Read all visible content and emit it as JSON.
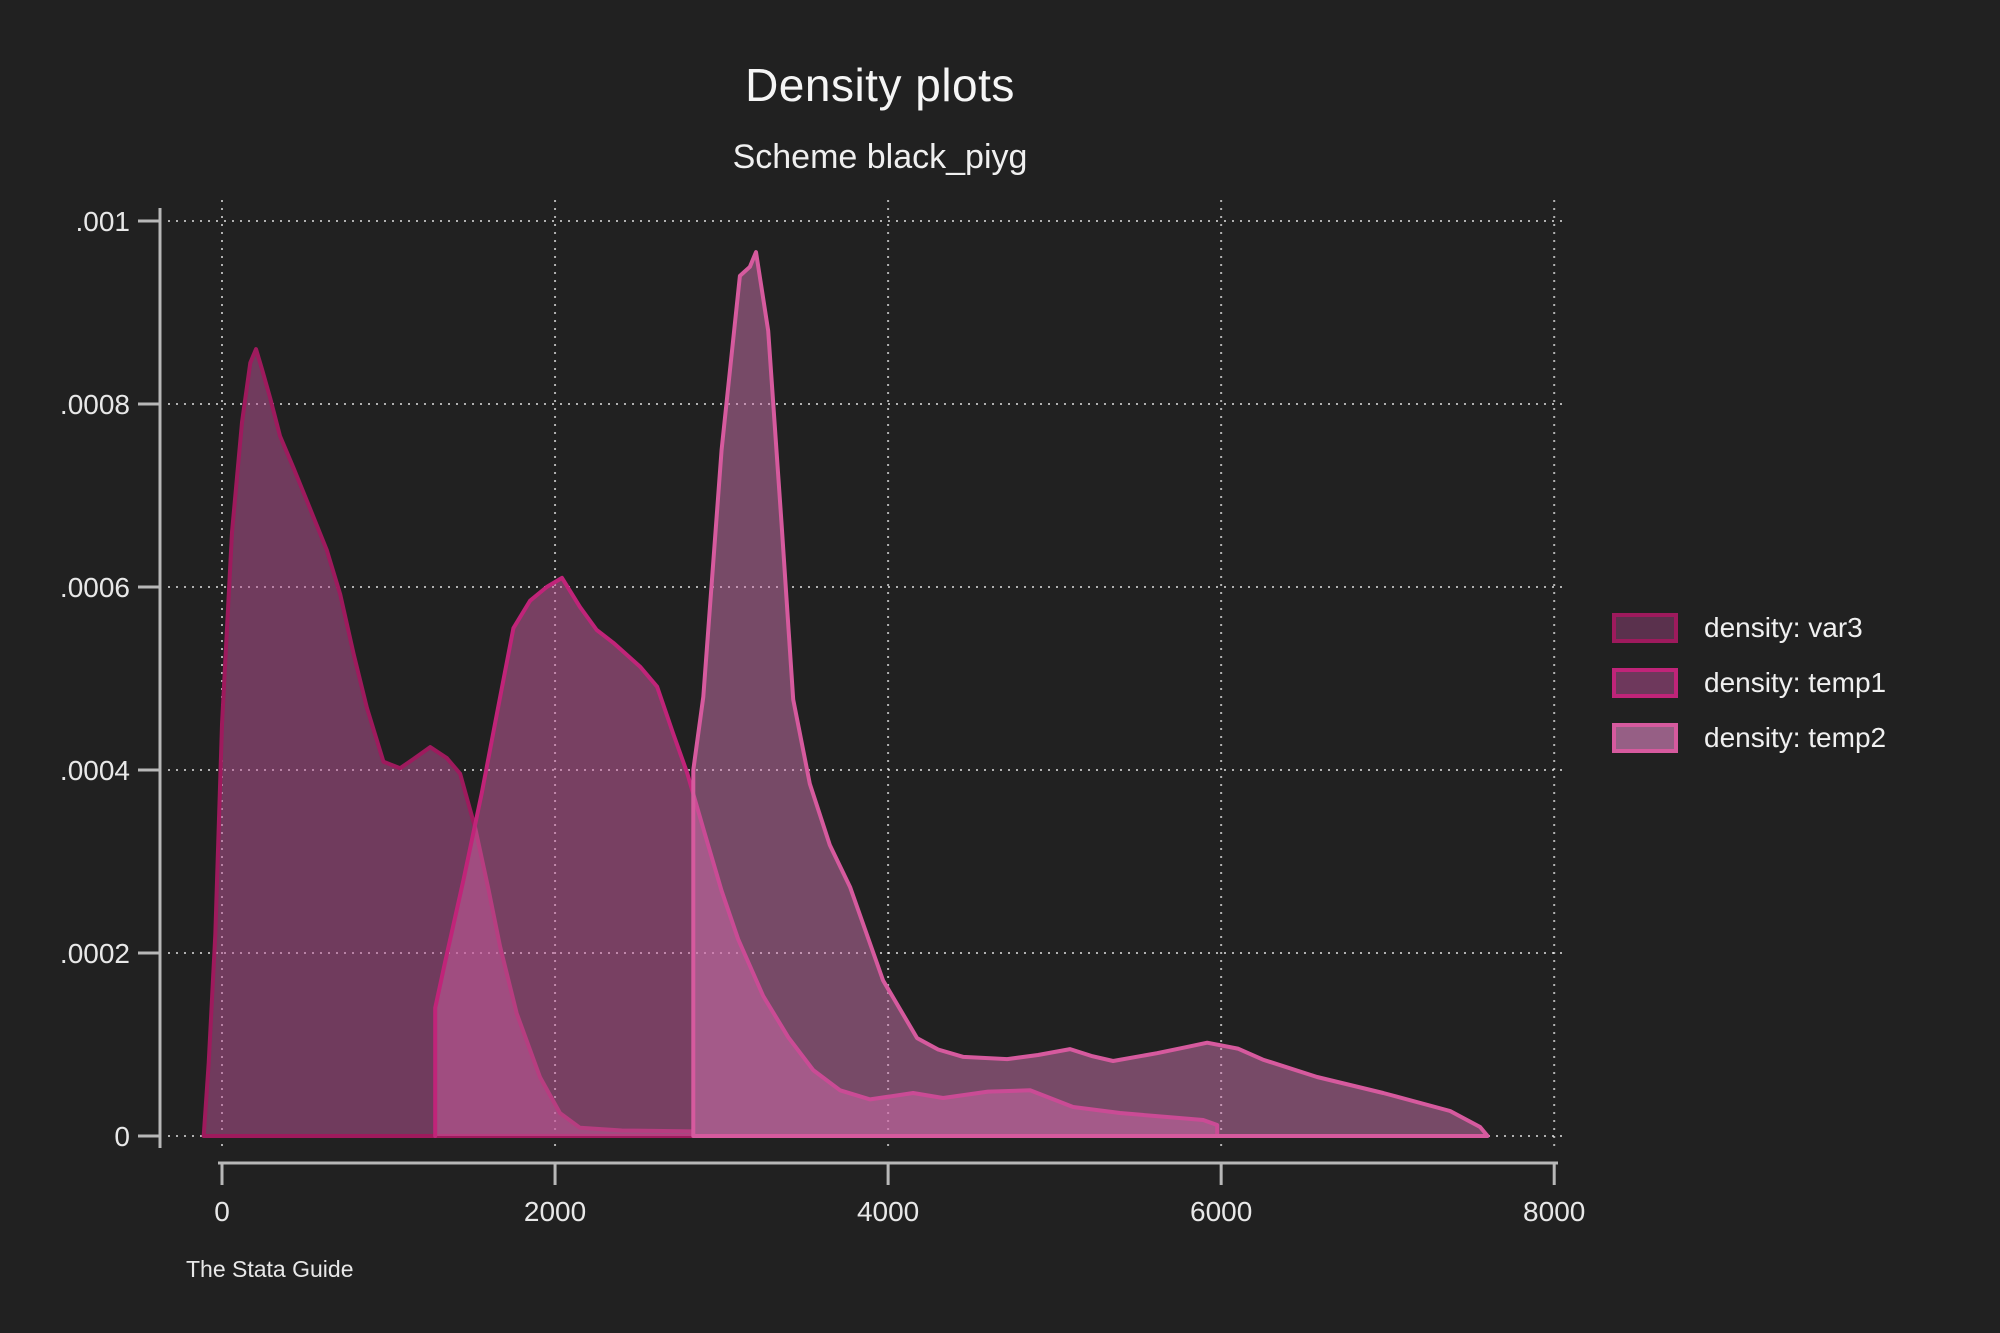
{
  "header": {
    "title": "Density plots",
    "subtitle": "Scheme black_piyg"
  },
  "caption": "The Stata Guide",
  "colors": {
    "background": "#212121",
    "axis_line": "#b8b8b8",
    "tick_text": "#e8e8e8",
    "title_text": "#f5f5f5",
    "gridline": "rgba(255,255,255,0.65)"
  },
  "legend": {
    "position": "right",
    "items": [
      {
        "label": "density: var3",
        "line": "#9e1a5d",
        "fill": "#5a314d"
      },
      {
        "label": "density: temp1",
        "line": "#c02479",
        "fill": "#6e385c"
      },
      {
        "label": "density: temp2",
        "line": "#d65a9e",
        "fill": "#965f85"
      }
    ]
  },
  "chart_data": {
    "type": "area",
    "title": "Density plots",
    "subtitle": "Scheme black_piyg",
    "xlabel": "",
    "ylabel": "",
    "xlim": [
      -370,
      8060
    ],
    "ylim": [
      0,
      0.001
    ],
    "grid": true,
    "legend_position": "right",
    "x_ticks": [
      0,
      2000,
      4000,
      6000,
      8000
    ],
    "x_tick_labels": [
      "0",
      "2000",
      "4000",
      "6000",
      "8000"
    ],
    "y_ticks": [
      0,
      0.0002,
      0.0004,
      0.0006,
      0.0008,
      0.001
    ],
    "y_tick_labels": [
      "0",
      ".0002",
      ".0004",
      ".0006",
      ".0008",
      ".001"
    ],
    "series": [
      {
        "name": "density: var3",
        "line_color": "#9e1a5d",
        "fill_color": "rgba(192,86,154,0.50)",
        "close_bottom": true,
        "points": [
          [
            -110,
            0
          ],
          [
            -80,
            8e-05
          ],
          [
            -40,
            0.00022
          ],
          [
            0,
            0.00045
          ],
          [
            60,
            0.00066
          ],
          [
            120,
            0.00078
          ],
          [
            170,
            0.000845
          ],
          [
            204,
            0.00086
          ],
          [
            240,
            0.000838
          ],
          [
            290,
            0.000806
          ],
          [
            348,
            0.000765
          ],
          [
            430,
            0.00073
          ],
          [
            530,
            0.000685
          ],
          [
            630,
            0.00064
          ],
          [
            710,
            0.000592
          ],
          [
            790,
            0.000527
          ],
          [
            870,
            0.000468
          ],
          [
            970,
            0.000409
          ],
          [
            1070,
            0.000402
          ],
          [
            1150,
            0.000412
          ],
          [
            1250,
            0.000425
          ],
          [
            1350,
            0.000413
          ],
          [
            1430,
            0.000396
          ],
          [
            1520,
            0.000337
          ],
          [
            1600,
            0.00027
          ],
          [
            1670,
            0.000207
          ],
          [
            1770,
            0.000134
          ],
          [
            1910,
            6.4e-05
          ],
          [
            2030,
            2.5e-05
          ],
          [
            2150,
            9e-06
          ],
          [
            2400,
            6e-06
          ],
          [
            2820,
            5e-06
          ],
          [
            2820,
            0
          ]
        ]
      },
      {
        "name": "density: temp1",
        "line_color": "#c02479",
        "fill_color": "rgba(208,95,164,0.50)",
        "close_bottom": false,
        "points": [
          [
            1280,
            0
          ],
          [
            1280,
            0.00014
          ],
          [
            1340,
            0.00019
          ],
          [
            1450,
            0.00028
          ],
          [
            1560,
            0.000375
          ],
          [
            1660,
            0.00047
          ],
          [
            1750,
            0.000555
          ],
          [
            1850,
            0.000585
          ],
          [
            1950,
            0.0006
          ],
          [
            2042,
            0.00061
          ],
          [
            2150,
            0.000578
          ],
          [
            2250,
            0.000553
          ],
          [
            2350,
            0.000539
          ],
          [
            2510,
            0.000513
          ],
          [
            2613,
            0.000491
          ],
          [
            2709,
            0.00044
          ],
          [
            2793,
            0.000397
          ],
          [
            2900,
            0.00033
          ],
          [
            3000,
            0.000268
          ],
          [
            3100,
            0.000215
          ],
          [
            3250,
            0.000153
          ],
          [
            3400,
            0.000108
          ],
          [
            3550,
            7.2e-05
          ],
          [
            3712,
            5e-05
          ],
          [
            3892,
            4e-05
          ],
          [
            4150,
            4.7e-05
          ],
          [
            4330,
            4.15e-05
          ],
          [
            4600,
            4.85e-05
          ],
          [
            4853,
            5e-05
          ],
          [
            5111,
            3.17e-05
          ],
          [
            5393,
            2.51e-05
          ],
          [
            5676,
            2.08e-05
          ],
          [
            5892,
            1.75e-05
          ],
          [
            5976,
            1.2e-05
          ],
          [
            5976,
            0
          ]
        ]
      },
      {
        "name": "density: temp2",
        "line_color": "#d65a9e",
        "fill_color": "rgba(214,120,180,0.48)",
        "close_bottom": true,
        "points": [
          [
            2830,
            0
          ],
          [
            2830,
            0.0004
          ],
          [
            2890,
            0.00048
          ],
          [
            3000,
            0.00075
          ],
          [
            3110,
            0.00094
          ],
          [
            3170,
            0.00095
          ],
          [
            3207,
            0.000966
          ],
          [
            3280,
            0.00088
          ],
          [
            3360,
            0.00067
          ],
          [
            3430,
            0.000477
          ],
          [
            3530,
            0.000385
          ],
          [
            3650,
            0.000318
          ],
          [
            3772,
            0.000272
          ],
          [
            3970,
            0.00017
          ],
          [
            4174,
            0.000107
          ],
          [
            4300,
            9.45e-05
          ],
          [
            4452,
            8.64e-05
          ],
          [
            4715,
            8.4e-05
          ],
          [
            4900,
            8.85e-05
          ],
          [
            5093,
            9.5e-05
          ],
          [
            5220,
            8.75e-05
          ],
          [
            5351,
            8.2e-05
          ],
          [
            5615,
            9.05e-05
          ],
          [
            5800,
            9.75e-05
          ],
          [
            5916,
            0.000102
          ],
          [
            6100,
            9.55e-05
          ],
          [
            6250,
            8.35e-05
          ],
          [
            6576,
            6.45e-05
          ],
          [
            6973,
            4.7e-05
          ],
          [
            7375,
            2.73e-05
          ],
          [
            7555,
            9.8e-06
          ],
          [
            7600,
            0
          ]
        ]
      }
    ]
  }
}
